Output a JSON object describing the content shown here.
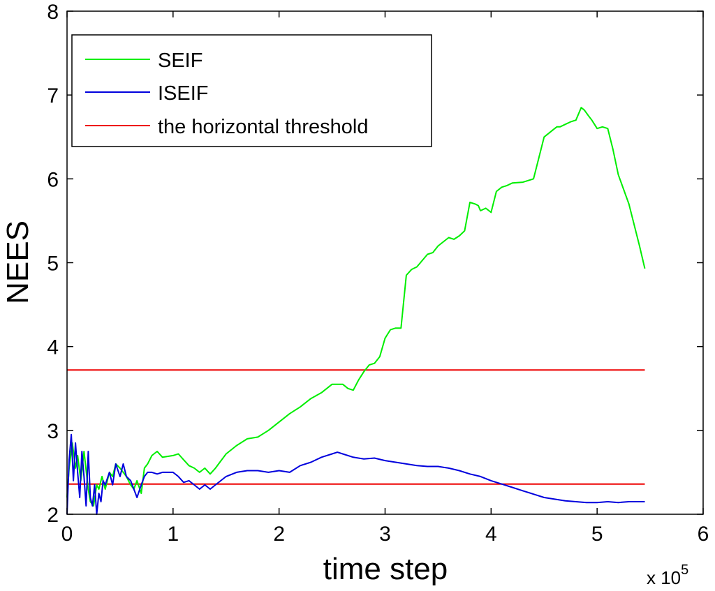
{
  "chart_data": {
    "type": "line",
    "title": "",
    "xlabel": "time step",
    "ylabel": "NEES",
    "x_multiplier_label": "x 10",
    "x_multiplier_exponent": "5",
    "xlim": [
      0,
      6
    ],
    "ylim": [
      2,
      8
    ],
    "xticks": [
      0,
      1,
      2,
      3,
      4,
      5,
      6
    ],
    "yticks": [
      2,
      3,
      4,
      5,
      6,
      7,
      8
    ],
    "grid": false,
    "legend_position": "top-left",
    "series": [
      {
        "name": "SEIF",
        "color": "#00ee00",
        "x": [
          0,
          0.02,
          0.05,
          0.08,
          0.1,
          0.13,
          0.16,
          0.2,
          0.22,
          0.25,
          0.28,
          0.3,
          0.33,
          0.36,
          0.4,
          0.43,
          0.46,
          0.5,
          0.53,
          0.56,
          0.6,
          0.63,
          0.66,
          0.7,
          0.73,
          0.76,
          0.8,
          0.85,
          0.9,
          1.0,
          1.05,
          1.1,
          1.15,
          1.2,
          1.25,
          1.3,
          1.35,
          1.4,
          1.5,
          1.6,
          1.7,
          1.8,
          1.9,
          2.0,
          2.1,
          2.2,
          2.3,
          2.4,
          2.5,
          2.6,
          2.65,
          2.7,
          2.75,
          2.8,
          2.85,
          2.9,
          2.95,
          3.0,
          3.05,
          3.1,
          3.15,
          3.2,
          3.25,
          3.3,
          3.4,
          3.45,
          3.5,
          3.55,
          3.6,
          3.65,
          3.7,
          3.75,
          3.8,
          3.85,
          3.88,
          3.9,
          3.95,
          4.0,
          4.05,
          4.1,
          4.15,
          4.2,
          4.3,
          4.4,
          4.5,
          4.6,
          4.62,
          4.65,
          4.7,
          4.75,
          4.8,
          4.85,
          4.88,
          4.92,
          4.95,
          5.0,
          5.05,
          5.1,
          5.15,
          5.2,
          5.3,
          5.4,
          5.45
        ],
        "values": [
          2.2,
          2.55,
          2.85,
          2.55,
          2.7,
          2.4,
          2.75,
          2.3,
          2.15,
          2.1,
          2.35,
          2.3,
          2.45,
          2.3,
          2.5,
          2.45,
          2.6,
          2.55,
          2.5,
          2.45,
          2.35,
          2.3,
          2.4,
          2.25,
          2.55,
          2.6,
          2.7,
          2.75,
          2.68,
          2.7,
          2.72,
          2.65,
          2.58,
          2.55,
          2.5,
          2.55,
          2.48,
          2.55,
          2.72,
          2.82,
          2.9,
          2.92,
          3.0,
          3.1,
          3.2,
          3.28,
          3.38,
          3.45,
          3.55,
          3.55,
          3.5,
          3.48,
          3.6,
          3.7,
          3.78,
          3.8,
          3.88,
          4.1,
          4.2,
          4.22,
          4.22,
          4.85,
          4.92,
          4.95,
          5.1,
          5.12,
          5.2,
          5.25,
          5.3,
          5.28,
          5.32,
          5.38,
          5.72,
          5.7,
          5.68,
          5.62,
          5.65,
          5.6,
          5.85,
          5.9,
          5.92,
          5.95,
          5.96,
          6.0,
          6.5,
          6.6,
          6.62,
          6.62,
          6.65,
          6.68,
          6.7,
          6.85,
          6.82,
          6.75,
          6.7,
          6.6,
          6.62,
          6.6,
          6.35,
          6.05,
          5.7,
          5.2,
          4.93
        ]
      },
      {
        "name": "ISEIF",
        "color": "#0000dd",
        "x": [
          0,
          0.02,
          0.04,
          0.06,
          0.08,
          0.1,
          0.12,
          0.14,
          0.16,
          0.18,
          0.2,
          0.22,
          0.24,
          0.26,
          0.28,
          0.3,
          0.32,
          0.34,
          0.36,
          0.4,
          0.43,
          0.46,
          0.5,
          0.53,
          0.56,
          0.6,
          0.63,
          0.66,
          0.7,
          0.73,
          0.76,
          0.8,
          0.85,
          0.9,
          1.0,
          1.05,
          1.1,
          1.15,
          1.2,
          1.25,
          1.3,
          1.35,
          1.4,
          1.5,
          1.6,
          1.7,
          1.8,
          1.9,
          2.0,
          2.1,
          2.2,
          2.3,
          2.4,
          2.5,
          2.55,
          2.6,
          2.7,
          2.8,
          2.9,
          3.0,
          3.1,
          3.2,
          3.3,
          3.4,
          3.5,
          3.6,
          3.7,
          3.8,
          3.9,
          4.0,
          4.1,
          4.2,
          4.3,
          4.4,
          4.5,
          4.6,
          4.7,
          4.8,
          4.9,
          5.0,
          5.1,
          5.2,
          5.3,
          5.4,
          5.45
        ],
        "values": [
          2.0,
          2.65,
          2.95,
          2.4,
          2.85,
          2.5,
          2.2,
          2.75,
          2.45,
          2.1,
          2.75,
          2.2,
          2.1,
          2.35,
          2.0,
          2.25,
          2.15,
          2.4,
          2.35,
          2.5,
          2.35,
          2.6,
          2.45,
          2.6,
          2.45,
          2.4,
          2.3,
          2.2,
          2.35,
          2.45,
          2.5,
          2.5,
          2.48,
          2.5,
          2.5,
          2.45,
          2.38,
          2.4,
          2.35,
          2.3,
          2.35,
          2.3,
          2.35,
          2.45,
          2.5,
          2.52,
          2.52,
          2.5,
          2.52,
          2.5,
          2.58,
          2.62,
          2.68,
          2.72,
          2.74,
          2.72,
          2.68,
          2.66,
          2.67,
          2.64,
          2.62,
          2.6,
          2.58,
          2.57,
          2.57,
          2.55,
          2.52,
          2.48,
          2.45,
          2.4,
          2.36,
          2.32,
          2.28,
          2.24,
          2.2,
          2.18,
          2.16,
          2.15,
          2.14,
          2.14,
          2.15,
          2.14,
          2.15,
          2.15,
          2.15
        ]
      },
      {
        "name": "the horizontal threshold",
        "color": "#ee0000",
        "segments": [
          {
            "x": [
              0,
              5.45
            ],
            "values": [
              2.36,
              2.36
            ]
          },
          {
            "x": [
              0,
              5.45
            ],
            "values": [
              3.72,
              3.72
            ]
          }
        ]
      }
    ]
  }
}
